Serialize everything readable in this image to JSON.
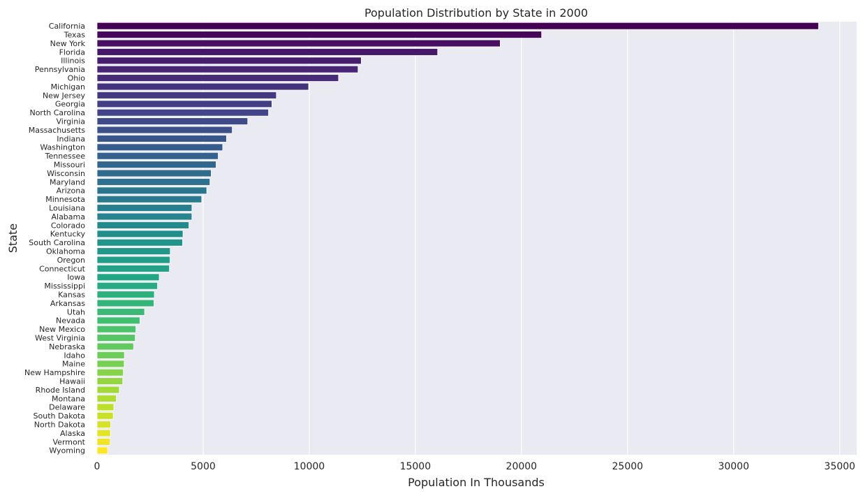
{
  "chart_data": {
    "type": "bar",
    "orientation": "horizontal",
    "title": "Population Distribution by State in 2000",
    "xlabel": "Population In Thousands",
    "ylabel": "State",
    "xlim": [
      0,
      35800
    ],
    "xticks": [
      0,
      5000,
      10000,
      15000,
      20000,
      25000,
      30000,
      35000
    ],
    "grid": "vertical",
    "palette": "viridis",
    "background": "#eaeaf2",
    "categories": [
      "California",
      "Texas",
      "New York",
      "Florida",
      "Illinois",
      "Pennsylvania",
      "Ohio",
      "Michigan",
      "New Jersey",
      "Georgia",
      "North Carolina",
      "Virginia",
      "Massachusetts",
      "Indiana",
      "Washington",
      "Tennessee",
      "Missouri",
      "Wisconsin",
      "Maryland",
      "Arizona",
      "Minnesota",
      "Louisiana",
      "Alabama",
      "Colorado",
      "Kentucky",
      "South Carolina",
      "Oklahoma",
      "Oregon",
      "Connecticut",
      "Iowa",
      "Mississippi",
      "Kansas",
      "Arkansas",
      "Utah",
      "Nevada",
      "New Mexico",
      "West Virginia",
      "Nebraska",
      "Idaho",
      "Maine",
      "New Hampshire",
      "Hawaii",
      "Rhode Island",
      "Montana",
      "Delaware",
      "South Dakota",
      "North Dakota",
      "Alaska",
      "Vermont",
      "Wyoming"
    ],
    "values": [
      34000,
      20950,
      19000,
      16050,
      12450,
      12300,
      11380,
      9970,
      8450,
      8240,
      8080,
      7100,
      6370,
      6100,
      5920,
      5710,
      5610,
      5380,
      5320,
      5170,
      4930,
      4470,
      4470,
      4330,
      4050,
      4030,
      3450,
      3440,
      3410,
      2930,
      2850,
      2700,
      2680,
      2240,
      2020,
      1830,
      1800,
      1720,
      1290,
      1280,
      1240,
      1210,
      1050,
      910,
      790,
      760,
      640,
      630,
      610,
      500
    ]
  }
}
